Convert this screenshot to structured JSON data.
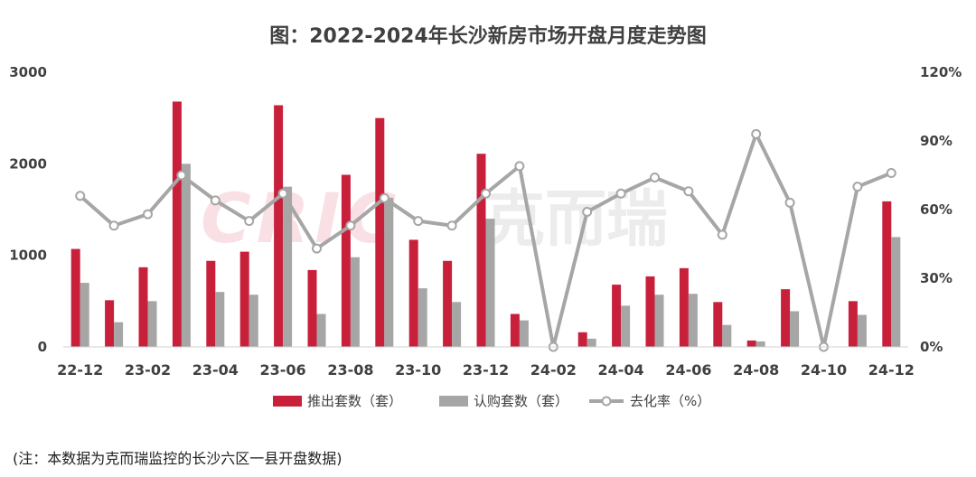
{
  "title": "图：2022-2024年长沙新房市场开盘月度走势图",
  "note": "(注：本数据为克而瑞监控的长沙六区一县开盘数据)",
  "watermark": {
    "logo_text": "CRIC",
    "brand": "克而瑞"
  },
  "colors": {
    "supply": "#c8203b",
    "sales": "#a6a6a6",
    "rate": "#a6a6a6"
  },
  "chart_data": {
    "type": "bar+line",
    "categories": [
      "22-12",
      "23-01",
      "23-02",
      "23-03",
      "23-04",
      "23-05",
      "23-06",
      "23-07",
      "23-08",
      "23-09",
      "23-10",
      "23-11",
      "23-12",
      "24-01",
      "24-02",
      "24-03",
      "24-04",
      "24-05",
      "24-06",
      "24-07",
      "24-08",
      "24-09",
      "24-10",
      "24-11",
      "24-12"
    ],
    "x_tick_labels": [
      "22-12",
      "23-02",
      "23-04",
      "23-06",
      "23-08",
      "23-10",
      "23-12",
      "24-02",
      "24-04",
      "24-06",
      "24-08",
      "24-10",
      "24-12"
    ],
    "series": [
      {
        "name": "推出套数（套）",
        "type": "bar",
        "axis": "left",
        "values": [
          1070,
          510,
          870,
          2680,
          940,
          1040,
          2640,
          840,
          1880,
          2500,
          1170,
          940,
          2110,
          360,
          0,
          160,
          680,
          770,
          860,
          490,
          70,
          630,
          0,
          500,
          1590
        ]
      },
      {
        "name": "认购套数（套）",
        "type": "bar",
        "axis": "left",
        "values": [
          700,
          270,
          500,
          2000,
          600,
          570,
          1750,
          360,
          980,
          1630,
          640,
          490,
          1400,
          290,
          0,
          90,
          450,
          570,
          580,
          240,
          60,
          390,
          0,
          350,
          1200
        ]
      },
      {
        "name": "去化率（%）",
        "type": "line",
        "axis": "right",
        "values": [
          66,
          53,
          58,
          75,
          64,
          55,
          67,
          43,
          53,
          65,
          55,
          53,
          67,
          79,
          0,
          59,
          67,
          74,
          68,
          49,
          93,
          63,
          0,
          70,
          76
        ]
      }
    ],
    "y_left": {
      "ticks": [
        "0",
        "1000",
        "2000",
        "3000"
      ],
      "min": 0,
      "max": 3000
    },
    "y_right": {
      "ticks": [
        "0%",
        "30%",
        "60%",
        "90%",
        "120%"
      ],
      "min": 0,
      "max": 120
    },
    "legend_position": "bottom",
    "grid": false
  }
}
